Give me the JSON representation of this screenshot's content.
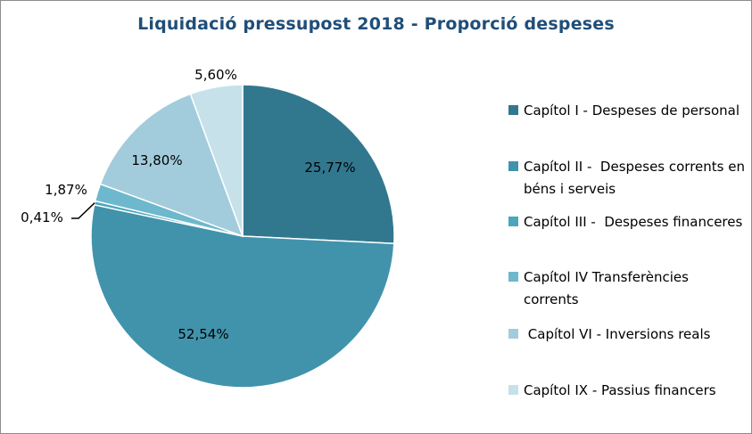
{
  "chart_data": {
    "type": "pie",
    "title": "Liquidació pressupost 2018 - Proporció despeses",
    "slices": [
      {
        "label": "Capítol I - Despeses de personal",
        "value": 25.77,
        "value_label": "25,77%",
        "color": "#31788f"
      },
      {
        "label": "Capítol II -  Despeses corrents en béns i serveis",
        "value": 52.54,
        "value_label": "52,54%",
        "color": "#4193ac"
      },
      {
        "label": "Capítol III -  Despeses financeres",
        "value": 0.41,
        "value_label": "0,41%",
        "color": "#4aa6bd"
      },
      {
        "label": "Capítol IV Transferències corrents",
        "value": 1.87,
        "value_label": "1,87%",
        "color": "#6db8cc"
      },
      {
        "label": " Capítol VI - Inversions reals",
        "value": 13.8,
        "value_label": "13,80%",
        "color": "#a2ccdc"
      },
      {
        "label": "Capítol IX - Passius financers",
        "value": 5.6,
        "value_label": "5,60%",
        "color": "#c7e1ea"
      }
    ],
    "legend_position": "right"
  }
}
